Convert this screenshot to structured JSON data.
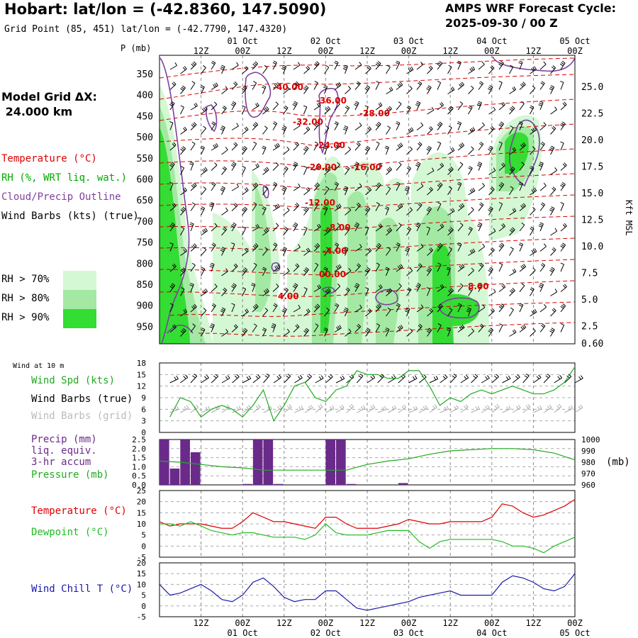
{
  "header": {
    "title": "Hobart:  lat/lon = (-42.8360, 147.5090)",
    "subtitle": "Grid Point (85, 451) lat/lon = (-42.7790, 147.4320)",
    "cycle_line1": "AMPS WRF Forecast Cycle:",
    "cycle_line2": "2025-09-30 / 00  Z",
    "grid_line1": "Model Grid ΔX:",
    "grid_line2": " 24.000 km"
  },
  "legend": {
    "temperature": "Temperature (°C)",
    "rh": "RH (%, WRT liq. wat.)",
    "cloud": "Cloud/Precip Outline",
    "wind": "Wind Barbs (kts) (true)",
    "rh70": "RH > 70%",
    "rh80": "RH > 80%",
    "rh90": "RH > 90%"
  },
  "colors": {
    "rh70": "#d4f8d4",
    "rh80": "#a3e9a3",
    "rh90": "#33dd33",
    "temperature": "#dd0000",
    "rh_text": "#00aa00",
    "cloud": "#7f3fa0",
    "precip_bar": "#6a2a8a",
    "pressure": "#22aa22",
    "dewpoint": "#22bb22",
    "windchill": "#1a1aaa",
    "grid_barbs": "#aaaaaa"
  },
  "time_axis": {
    "top_hour_labels": [
      "12Z",
      "00Z",
      "12Z",
      "00Z",
      "12Z",
      "00Z",
      "12Z",
      "00Z",
      "12Z",
      "00Z"
    ],
    "top_date_labels": [
      "01 Oct",
      "02 Oct",
      "03 Oct",
      "04 Oct",
      "05 Oct"
    ],
    "bottom_hour_labels": [
      "12Z",
      "00Z",
      "12Z",
      "00Z",
      "12Z",
      "00Z",
      "12Z",
      "00Z",
      "12Z",
      "00Z"
    ],
    "bottom_date_labels": [
      "01 Oct",
      "02 Oct",
      "03 Oct",
      "04 Oct",
      "05 Oct"
    ]
  },
  "cross_section": {
    "p_axis_title": "P (mb)",
    "p_ticks": [
      "350",
      "400",
      "450",
      "500",
      "550",
      "600",
      "650",
      "700",
      "750",
      "800",
      "850",
      "900",
      "950"
    ],
    "kft_ticks": [
      "25.0",
      "22.5",
      "20.0",
      "17.5",
      "15.0",
      "12.5",
      "10.0",
      "7.5",
      "5.0",
      "2.5",
      "0.60"
    ],
    "kft_label": "Kft MSL",
    "temp_labels": [
      "-40.00",
      "-36.00",
      "-28.00",
      "-32.00",
      "-24.00",
      "-20.00",
      "-16.00",
      "-12.00",
      "-8.00",
      "-4.00",
      "00.00",
      "4.00",
      "8.00"
    ]
  },
  "panels": {
    "wind_title": "Wind at 10 m",
    "wind_spd": "Wind Spd (kts)",
    "wind_barbs_true": "Wind Barbs (true)",
    "wind_barbs_grid": "Wind Barbs (grid)",
    "precip1": "Precip (mm)",
    "precip2": "liq. equiv.",
    "precip3": "3-hr accum",
    "pressure": "Pressure (mb)",
    "pressure_unit": "(mb)",
    "temperature": "Temperature (°C)",
    "dewpoint": "Dewpoint (°C)",
    "windchill": "Wind Chill T (°C)",
    "wind_ticks": [
      "18",
      "15",
      "12",
      "9",
      "6",
      "3",
      "0"
    ],
    "precip_ticks": [
      "2.5",
      "2.0",
      "1.5",
      "1.0",
      "0.5",
      "0.0"
    ],
    "pressure_ticks": [
      "1000",
      "990",
      "980",
      "970",
      "960"
    ],
    "temp_ticks": [
      "25",
      "20",
      "15",
      "10",
      "5",
      "0",
      "-5"
    ],
    "chill_ticks": [
      "20",
      "15",
      "10",
      "5",
      "0",
      "-5"
    ]
  },
  "chart_data": [
    {
      "type": "line",
      "title": "Wind at 10 m",
      "x_hours": [
        3,
        6,
        9,
        12,
        15,
        18,
        21,
        24,
        27,
        30,
        33,
        36,
        39,
        42,
        45,
        48,
        51,
        54,
        57,
        60,
        63,
        66,
        69,
        72,
        75,
        78,
        81,
        84,
        87,
        90,
        93,
        96,
        99,
        102,
        105,
        108,
        111,
        114,
        117,
        120
      ],
      "series": [
        {
          "name": "Wind Spd (kts)",
          "values": [
            4,
            9,
            8,
            4,
            6,
            7,
            6,
            4,
            7,
            11,
            3,
            7,
            12,
            13,
            9,
            8,
            11,
            12,
            16,
            15,
            15,
            14,
            14,
            16,
            16,
            12,
            7,
            9,
            8,
            10,
            11,
            10,
            11,
            12,
            11,
            10,
            10,
            11,
            13,
            17
          ]
        }
      ],
      "ylim": [
        0,
        18
      ]
    },
    {
      "type": "bar",
      "title": "Precip (mm) liq. equiv. 3-hr accum",
      "x_hours": [
        3,
        6,
        9,
        12,
        15,
        18,
        21,
        24,
        27,
        30,
        33,
        36,
        39,
        42,
        45,
        48,
        51,
        54,
        57,
        60,
        63,
        66,
        69,
        72,
        75,
        78,
        81,
        84,
        87,
        90,
        93,
        96,
        99,
        102,
        105,
        108,
        111,
        114,
        117,
        120
      ],
      "precip_mm": [
        2.5,
        0.9,
        2.5,
        1.8,
        0,
        0,
        0,
        0,
        0.05,
        2.5,
        2.5,
        0.05,
        0,
        0,
        0,
        0,
        2.5,
        2.5,
        0.05,
        0,
        0,
        0,
        0,
        0.1,
        0,
        0,
        0,
        0,
        0,
        0,
        0,
        0,
        0,
        0,
        0,
        0,
        0,
        0,
        0,
        0
      ],
      "ylim": [
        0,
        2.5
      ]
    },
    {
      "type": "line",
      "title": "Pressure (mb)",
      "x_hours": [
        0,
        6,
        12,
        18,
        24,
        30,
        36,
        42,
        48,
        54,
        60,
        66,
        72,
        78,
        84,
        90,
        96,
        102,
        108,
        114,
        120
      ],
      "series": [
        {
          "name": "Pressure (mb)",
          "values": [
            981,
            980,
            978,
            976,
            975,
            973,
            973,
            973,
            973,
            973,
            978,
            981,
            983,
            987,
            990,
            991,
            992,
            992,
            991,
            988,
            982
          ]
        }
      ],
      "ylim": [
        960,
        1000
      ]
    },
    {
      "type": "line",
      "title": "Temperature / Dewpoint",
      "x_hours": [
        0,
        3,
        6,
        9,
        12,
        15,
        18,
        21,
        24,
        27,
        30,
        33,
        36,
        39,
        42,
        45,
        48,
        51,
        54,
        57,
        60,
        63,
        66,
        69,
        72,
        75,
        78,
        81,
        84,
        87,
        90,
        93,
        96,
        99,
        102,
        105,
        108,
        111,
        114,
        117,
        120
      ],
      "series": [
        {
          "name": "Temperature (°C)",
          "values": [
            11,
            9,
            10,
            10,
            10,
            9,
            8,
            8,
            11,
            15,
            13,
            11,
            11,
            10,
            9,
            8,
            13,
            13,
            10,
            8,
            8,
            8,
            9,
            10,
            12,
            11,
            10,
            10,
            11,
            11,
            11,
            11,
            13,
            19,
            18,
            15,
            13,
            14,
            16,
            18,
            21
          ]
        },
        {
          "name": "Dewpoint (°C)",
          "values": [
            10,
            10,
            9,
            11,
            9,
            7,
            6,
            5,
            6,
            6,
            5,
            4,
            4,
            4,
            3,
            5,
            10,
            6,
            5,
            5,
            5,
            6,
            7,
            7,
            7,
            2,
            -1,
            2,
            3,
            3,
            3,
            3,
            3,
            2,
            0,
            0,
            -1,
            -3,
            0,
            2,
            4
          ]
        }
      ],
      "ylim": [
        -5,
        25
      ]
    },
    {
      "type": "line",
      "title": "Wind Chill T",
      "x_hours": [
        0,
        3,
        6,
        9,
        12,
        15,
        18,
        21,
        24,
        27,
        30,
        33,
        36,
        39,
        42,
        45,
        48,
        51,
        54,
        57,
        60,
        63,
        66,
        69,
        72,
        75,
        78,
        81,
        84,
        87,
        90,
        93,
        96,
        99,
        102,
        105,
        108,
        111,
        114,
        117,
        120
      ],
      "series": [
        {
          "name": "Wind Chill T (°C)",
          "values": [
            10,
            5,
            6,
            8,
            10,
            7,
            3,
            2,
            5,
            11,
            13,
            9,
            4,
            2,
            3,
            3,
            7,
            7,
            3,
            -1,
            -2,
            -1,
            0,
            1,
            2,
            4,
            5,
            6,
            7,
            5,
            5,
            5,
            5,
            11,
            14,
            13,
            11,
            8,
            7,
            9,
            15
          ]
        }
      ],
      "ylim": [
        -5,
        20
      ]
    }
  ]
}
